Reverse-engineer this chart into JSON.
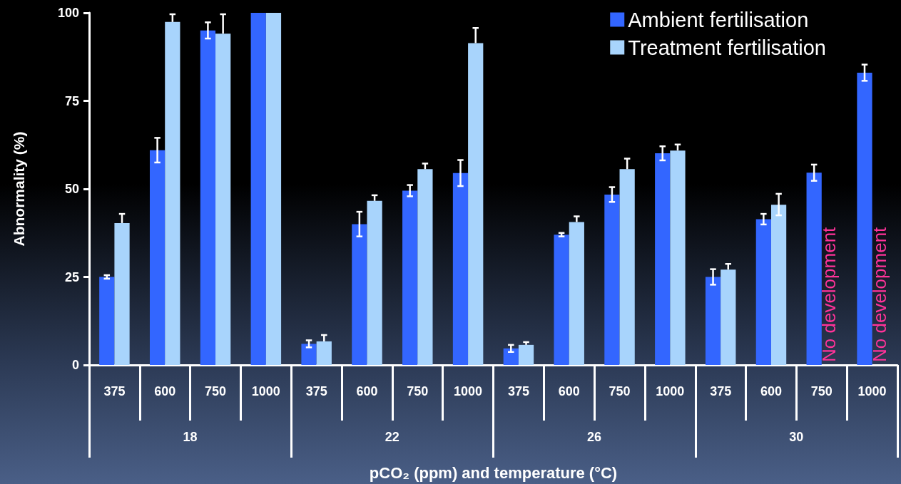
{
  "chart_data": {
    "type": "bar",
    "ylabel": "Abnormality (%)",
    "xlabel": "pCO₂ (ppm) and temperature (°C)",
    "categories": [
      "375",
      "600",
      "750",
      "1000",
      "375",
      "600",
      "750",
      "1000",
      "375",
      "600",
      "750",
      "1000",
      "375",
      "600",
      "750",
      "1000"
    ],
    "series": [
      {
        "name": "Ambient fertilisation",
        "color": "#3366ff",
        "values": [
          25,
          61,
          95,
          100,
          6,
          40,
          49.5,
          54.5,
          4.7,
          37,
          48.4,
          60.1,
          25,
          41.4,
          54.6,
          83
        ],
        "errors": [
          0.5,
          3.5,
          2.3,
          null,
          1,
          3.5,
          1.6,
          3.7,
          1,
          0.5,
          2.1,
          2,
          2.2,
          1.5,
          2.3,
          2.3
        ]
      },
      {
        "name": "Treatment fertilisation",
        "color": "#a8d4fc",
        "values": [
          40.3,
          97.4,
          94.1,
          100,
          6.7,
          46.6,
          55.6,
          91.4,
          5.7,
          40.6,
          55.6,
          60.9,
          27.1,
          45.5,
          null,
          null
        ],
        "errors": [
          [
            40.3,
            42.9
          ],
          [
            97.4,
            99.6
          ],
          [
            94.1,
            99.6
          ],
          null,
          [
            6.7,
            8.5
          ],
          [
            46.6,
            48.2
          ],
          [
            55.6,
            57.2
          ],
          [
            91.4,
            95.7
          ],
          [
            5.7,
            6.5
          ],
          [
            40.6,
            42.2
          ],
          [
            55.6,
            58.6
          ],
          [
            60.9,
            62.6
          ],
          [
            27.1,
            28.7
          ],
          [
            42.5,
            48.6
          ],
          null,
          null
        ]
      }
    ],
    "annotations": [
      "18",
      "22",
      "26",
      "30",
      "No development",
      "No development"
    ],
    "ylim": [
      0,
      100
    ],
    "yticks": [
      0,
      25,
      50,
      75,
      100
    ],
    "grid": false,
    "legend": "top right"
  }
}
